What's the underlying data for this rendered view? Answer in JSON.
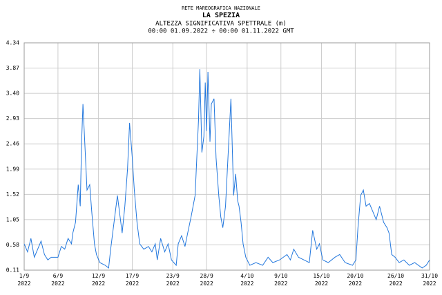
{
  "chart_data": {
    "type": "line",
    "title": "RETE MAREOGRAFICA NAZIONALE",
    "subtitle": "LA SPEZIA",
    "y_label": "ALTEZZA SIGNIFICATIVA SPETTRALE (m)",
    "period": "00:00 01.09.2022 ÷ 00:00 01.11.2022 GMT",
    "xlim": [
      0,
      60
    ],
    "xticks": [
      {
        "value": 0,
        "label": [
          "1/9",
          "2022"
        ]
      },
      {
        "value": 5,
        "label": [
          "6/9",
          "2022"
        ]
      },
      {
        "value": 11,
        "label": [
          "12/9",
          "2022"
        ]
      },
      {
        "value": 16,
        "label": [
          "17/9",
          "2022"
        ]
      },
      {
        "value": 22,
        "label": [
          "23/9",
          "2022"
        ]
      },
      {
        "value": 27,
        "label": [
          "28/9",
          "2022"
        ]
      },
      {
        "value": 33,
        "label": [
          "4/10",
          "2022"
        ]
      },
      {
        "value": 38,
        "label": [
          "9/10",
          "2022"
        ]
      },
      {
        "value": 44,
        "label": [
          "15/10",
          "2022"
        ]
      },
      {
        "value": 49,
        "label": [
          "20/10",
          "2022"
        ]
      },
      {
        "value": 55,
        "label": [
          "26/10",
          "2022"
        ]
      },
      {
        "value": 60,
        "label": [
          "31/10",
          "2022"
        ]
      }
    ],
    "ylim": [
      0.11,
      4.34
    ],
    "yticks": [
      0.11,
      0.58,
      1.05,
      1.52,
      1.99,
      2.46,
      2.93,
      {
        "value": 3.4,
        "label": "3.40"
      },
      3.87,
      4.34
    ],
    "grid": true,
    "series": [
      {
        "color": "#2277dd",
        "x": [
          0,
          0.5,
          1,
          1.5,
          2,
          2.5,
          3,
          3.5,
          4,
          5,
          5.5,
          6,
          6.5,
          7,
          7.2,
          7.6,
          8,
          8.3,
          8.5,
          8.7,
          9.0,
          9.3,
          9.7,
          10,
          10.4,
          10.7,
          11.2,
          12,
          12.5,
          12.8,
          13.1,
          13.5,
          13.8,
          14.2,
          14.5,
          14.9,
          15.3,
          15.6,
          16,
          16.3,
          16.7,
          17.1,
          17.7,
          18.4,
          18.9,
          19.4,
          19.7,
          20.2,
          20.8,
          21.3,
          21.8,
          22.5,
          22.8,
          23.3,
          23.8,
          24.2,
          24.7,
          25.3,
          25.8,
          26,
          26.3,
          26.6,
          26.8,
          27,
          27.2,
          27.5,
          27.7,
          28.1,
          28.4,
          28.8,
          29.1,
          29.4,
          29.8,
          30.2,
          30.6,
          30.8,
          31,
          31.3,
          31.6,
          31.8,
          32.1,
          32.4,
          32.8,
          33.4,
          34.3,
          35.3,
          36.1,
          36.8,
          37.8,
          38.9,
          39.4,
          39.9,
          40.6,
          41.4,
          42.2,
          42.7,
          43.3,
          43.7,
          44.2,
          45,
          46,
          46.7,
          47.5,
          48.6,
          49.1,
          49.4,
          49.8,
          50.2,
          50.6,
          51.1,
          51.6,
          52.1,
          52.6,
          53.2,
          53.7,
          54,
          54.4,
          54.9,
          55.5,
          56.2,
          57,
          57.8,
          58.9,
          59.5,
          60
        ],
        "values": [
          0.6,
          0.45,
          0.7,
          0.35,
          0.5,
          0.65,
          0.4,
          0.3,
          0.35,
          0.35,
          0.55,
          0.5,
          0.7,
          0.6,
          0.8,
          1.0,
          1.7,
          1.3,
          2.5,
          3.2,
          2.4,
          1.6,
          1.7,
          1.2,
          0.6,
          0.4,
          0.25,
          0.2,
          0.15,
          0.5,
          0.8,
          1.2,
          1.5,
          1.1,
          0.8,
          1.3,
          2.0,
          2.85,
          2.2,
          1.6,
          1.0,
          0.6,
          0.5,
          0.55,
          0.45,
          0.6,
          0.3,
          0.7,
          0.45,
          0.6,
          0.3,
          0.2,
          0.6,
          0.75,
          0.55,
          0.8,
          1.1,
          1.5,
          2.9,
          3.85,
          2.3,
          2.6,
          3.6,
          2.7,
          3.8,
          2.5,
          3.2,
          3.3,
          2.2,
          1.5,
          1.1,
          0.9,
          1.3,
          2.3,
          3.3,
          2.4,
          1.5,
          1.9,
          1.4,
          1.3,
          1.0,
          0.6,
          0.35,
          0.2,
          0.25,
          0.2,
          0.35,
          0.25,
          0.3,
          0.4,
          0.3,
          0.5,
          0.35,
          0.3,
          0.25,
          0.85,
          0.5,
          0.6,
          0.3,
          0.25,
          0.35,
          0.4,
          0.25,
          0.2,
          0.3,
          0.9,
          1.5,
          1.6,
          1.3,
          1.35,
          1.2,
          1.05,
          1.3,
          1.0,
          0.9,
          0.8,
          0.4,
          0.35,
          0.25,
          0.3,
          0.2,
          0.25,
          0.15,
          0.2,
          0.3
        ]
      }
    ]
  }
}
